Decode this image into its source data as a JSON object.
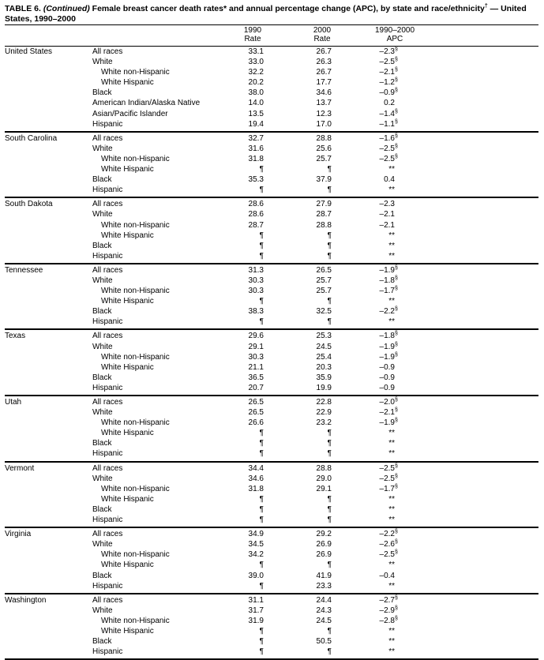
{
  "header": {
    "table_no": "TABLE 6.",
    "continued": "(Continued)",
    "title": "Female breast cancer death rates* and annual percentage change (APC), by state and race/ethnicity",
    "title_mark": "†",
    "title_end": "— United States, 1990–2000"
  },
  "columns": [
    {
      "line1": "1990",
      "line2": "Rate"
    },
    {
      "line1": "2000",
      "line2": "Rate"
    },
    {
      "line1": "1990–2000",
      "line2": "APC"
    }
  ],
  "groups": [
    {
      "state": "United States",
      "rows": [
        {
          "label": "All races",
          "r1990": "33.1",
          "r2000": "26.7",
          "apc": "–2.3",
          "apc_note": "§"
        },
        {
          "label": "White",
          "r1990": "33.0",
          "r2000": "26.3",
          "apc": "–2.5",
          "apc_note": "§",
          "sub": [
            {
              "label": "White non-Hispanic",
              "r1990": "32.2",
              "r2000": "26.7",
              "apc": "–2.1",
              "apc_note": "§"
            },
            {
              "label": "White Hispanic",
              "r1990": "20.2",
              "r2000": "17.7",
              "apc": "–1.2",
              "apc_note": "§"
            }
          ]
        },
        {
          "label": "Black",
          "r1990": "38.0",
          "r2000": "34.6",
          "apc": "–0.9",
          "apc_note": "§"
        },
        {
          "label": "American Indian/Alaska Native",
          "r1990": "14.0",
          "r2000": "13.7",
          "apc": "0.2"
        },
        {
          "label": "Asian/Pacific Islander",
          "r1990": "13.5",
          "r2000": "12.3",
          "apc": "–1.4",
          "apc_note": "§"
        },
        {
          "label": "Hispanic",
          "r1990": "19.4",
          "r2000": "17.0",
          "apc": "–1.1",
          "apc_note": "§"
        }
      ]
    },
    {
      "state": "South Carolina",
      "rows": [
        {
          "label": "All races",
          "r1990": "32.7",
          "r2000": "28.8",
          "apc": "–1.6",
          "apc_note": "§"
        },
        {
          "label": "White",
          "r1990": "31.6",
          "r2000": "25.6",
          "apc": "–2.5",
          "apc_note": "§",
          "sub": [
            {
              "label": "White non-Hispanic",
              "r1990": "31.8",
              "r2000": "25.7",
              "apc": "–2.5",
              "apc_note": "§"
            },
            {
              "label": "White Hispanic",
              "r1990": "¶",
              "r2000": "¶",
              "apc": "**"
            }
          ]
        },
        {
          "label": "Black",
          "r1990": "35.3",
          "r2000": "37.9",
          "apc": "0.4"
        },
        {
          "label": "Hispanic",
          "r1990": "¶",
          "r2000": "¶",
          "apc": "**"
        }
      ]
    },
    {
      "state": "South Dakota",
      "rows": [
        {
          "label": "All races",
          "r1990": "28.6",
          "r2000": "27.9",
          "apc": "–2.3"
        },
        {
          "label": "White",
          "r1990": "28.6",
          "r2000": "28.7",
          "apc": "–2.1",
          "sub": [
            {
              "label": "White non-Hispanic",
              "r1990": "28.7",
              "r2000": "28.8",
              "apc": "–2.1"
            },
            {
              "label": "White Hispanic",
              "r1990": "¶",
              "r2000": "¶",
              "apc": "**"
            }
          ]
        },
        {
          "label": "Black",
          "r1990": "¶",
          "r2000": "¶",
          "apc": "**"
        },
        {
          "label": "Hispanic",
          "r1990": "¶",
          "r2000": "¶",
          "apc": "**"
        }
      ]
    },
    {
      "state": "Tennessee",
      "rows": [
        {
          "label": "All races",
          "r1990": "31.3",
          "r2000": "26.5",
          "apc": "–1.9",
          "apc_note": "§"
        },
        {
          "label": "White",
          "r1990": "30.3",
          "r2000": "25.7",
          "apc": "–1.8",
          "apc_note": "§",
          "sub": [
            {
              "label": "White non-Hispanic",
              "r1990": "30.3",
              "r2000": "25.7",
              "apc": "–1.7",
              "apc_note": "§"
            },
            {
              "label": "White Hispanic",
              "r1990": "¶",
              "r2000": "¶",
              "apc": "**"
            }
          ]
        },
        {
          "label": "Black",
          "r1990": "38.3",
          "r2000": "32.5",
          "apc": "–2.2",
          "apc_note": "§"
        },
        {
          "label": "Hispanic",
          "r1990": "¶",
          "r2000": "¶",
          "apc": "**"
        }
      ]
    },
    {
      "state": "Texas",
      "rows": [
        {
          "label": "All races",
          "r1990": "29.6",
          "r2000": "25.3",
          "apc": "–1.8",
          "apc_note": "§"
        },
        {
          "label": "White",
          "r1990": "29.1",
          "r2000": "24.5",
          "apc": "–1.9",
          "apc_note": "§",
          "sub": [
            {
              "label": "White non-Hispanic",
              "r1990": "30.3",
              "r2000": "25.4",
              "apc": "–1.9",
              "apc_note": "§"
            },
            {
              "label": "White Hispanic",
              "r1990": "21.1",
              "r2000": "20.3",
              "apc": "–0.9"
            }
          ]
        },
        {
          "label": "Black",
          "r1990": "36.5",
          "r2000": "35.9",
          "apc": "–0.9"
        },
        {
          "label": "Hispanic",
          "r1990": "20.7",
          "r2000": "19.9",
          "apc": "–0.9"
        }
      ]
    },
    {
      "state": "Utah",
      "rows": [
        {
          "label": "All races",
          "r1990": "26.5",
          "r2000": "22.8",
          "apc": "–2.0",
          "apc_note": "§"
        },
        {
          "label": "White",
          "r1990": "26.5",
          "r2000": "22.9",
          "apc": "–2.1",
          "apc_note": "§",
          "sub": [
            {
              "label": "White non-Hispanic",
              "r1990": "26.6",
              "r2000": "23.2",
              "apc": "–1.9",
              "apc_note": "§"
            },
            {
              "label": "White Hispanic",
              "r1990": "¶",
              "r2000": "¶",
              "apc": "**"
            }
          ]
        },
        {
          "label": "Black",
          "r1990": "¶",
          "r2000": "¶",
          "apc": "**"
        },
        {
          "label": "Hispanic",
          "r1990": "¶",
          "r2000": "¶",
          "apc": "**"
        }
      ]
    },
    {
      "state": "Vermont",
      "rows": [
        {
          "label": "All races",
          "r1990": "34.4",
          "r2000": "28.8",
          "apc": "–2.5",
          "apc_note": "§"
        },
        {
          "label": "White",
          "r1990": "34.6",
          "r2000": "29.0",
          "apc": "–2.5",
          "apc_note": "§",
          "sub": [
            {
              "label": "White non-Hispanic",
              "r1990": "31.8",
              "r2000": "29.1",
              "apc": "–1.7",
              "apc_note": "§"
            },
            {
              "label": "White Hispanic",
              "r1990": "¶",
              "r2000": "¶",
              "apc": "**"
            }
          ]
        },
        {
          "label": "Black",
          "r1990": "¶",
          "r2000": "¶",
          "apc": "**"
        },
        {
          "label": "Hispanic",
          "r1990": "¶",
          "r2000": "¶",
          "apc": "**"
        }
      ]
    },
    {
      "state": "Virginia",
      "rows": [
        {
          "label": "All races",
          "r1990": "34.9",
          "r2000": "29.2",
          "apc": "–2.2",
          "apc_note": "§"
        },
        {
          "label": "White",
          "r1990": "34.5",
          "r2000": "26.9",
          "apc": "–2.6",
          "apc_note": "§",
          "sub": [
            {
              "label": "White non-Hispanic",
              "r1990": "34.2",
              "r2000": "26.9",
              "apc": "–2.5",
              "apc_note": "§"
            },
            {
              "label": "White Hispanic",
              "r1990": "¶",
              "r2000": "¶",
              "apc": "**"
            }
          ]
        },
        {
          "label": "Black",
          "r1990": "39.0",
          "r2000": "41.9",
          "apc": "–0.4"
        },
        {
          "label": "Hispanic",
          "r1990": "¶",
          "r2000": "23.3",
          "apc": "**"
        }
      ]
    },
    {
      "state": "Washington",
      "rows": [
        {
          "label": "All races",
          "r1990": "31.1",
          "r2000": "24.4",
          "apc": "–2.7",
          "apc_note": "§"
        },
        {
          "label": "White",
          "r1990": "31.7",
          "r2000": "24.3",
          "apc": "–2.9",
          "apc_note": "§",
          "sub": [
            {
              "label": "White non-Hispanic",
              "r1990": "31.9",
              "r2000": "24.5",
              "apc": "–2.8",
              "apc_note": "§"
            },
            {
              "label": "White Hispanic",
              "r1990": "¶",
              "r2000": "¶",
              "apc": "**"
            }
          ]
        },
        {
          "label": "Black",
          "r1990": "¶",
          "r2000": "50.5",
          "apc": "**"
        },
        {
          "label": "Hispanic",
          "r1990": "¶",
          "r2000": "¶",
          "apc": "**"
        }
      ]
    }
  ]
}
